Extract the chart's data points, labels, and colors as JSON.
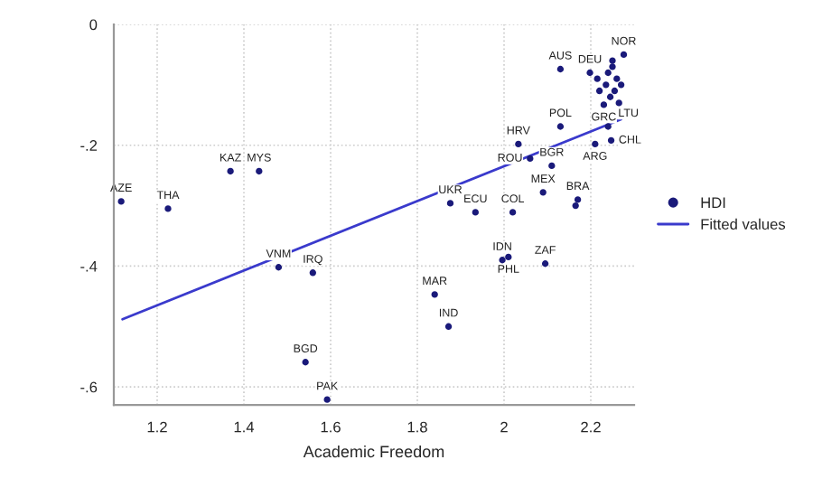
{
  "chart_data": {
    "type": "scatter",
    "xlabel": "Academic Freedom",
    "xlim": [
      1.1,
      2.3
    ],
    "xticks": [
      1.2,
      1.4,
      1.6,
      1.8,
      2,
      2.2
    ],
    "ylim": [
      -0.63,
      0.0
    ],
    "yticks": [
      {
        "value": 0,
        "label": "0"
      },
      {
        "value": -0.2,
        "label": "-.2"
      },
      {
        "value": -0.4,
        "label": "-.4"
      },
      {
        "value": -0.6,
        "label": "-.6"
      }
    ],
    "grid": true,
    "legend": "right",
    "marker": "circle",
    "series": [
      {
        "name": "HDI",
        "color": "#1a1a7a",
        "x": [
          1.117,
          1.225,
          1.369,
          1.435,
          1.48,
          1.559,
          1.542,
          1.592,
          1.876,
          1.934,
          2.02,
          2.09,
          2.17,
          2.165,
          2.033,
          2.06,
          2.11,
          2.13,
          2.13,
          2.198,
          2.276,
          2.23,
          2.24,
          2.21,
          2.247,
          1.996,
          2.01,
          2.095,
          1.84,
          1.872,
          2.24,
          2.25,
          2.26,
          2.27,
          2.255,
          2.235,
          2.215,
          2.245,
          2.265,
          2.22,
          2.25
        ],
        "values": [
          -0.293,
          -0.305,
          -0.243,
          -0.243,
          -0.402,
          -0.411,
          -0.559,
          -0.621,
          -0.296,
          -0.311,
          -0.311,
          -0.278,
          -0.29,
          -0.3,
          -0.198,
          -0.222,
          -0.234,
          -0.169,
          -0.074,
          -0.08,
          -0.05,
          -0.133,
          -0.169,
          -0.198,
          -0.192,
          -0.39,
          -0.385,
          -0.396,
          -0.447,
          -0.5,
          -0.08,
          -0.07,
          -0.09,
          -0.1,
          -0.11,
          -0.1,
          -0.09,
          -0.12,
          -0.13,
          -0.11,
          -0.06
        ],
        "value_labels": [
          "AZE",
          "THA",
          "KAZ",
          "MYS",
          "VNM",
          "IRQ",
          "BGD",
          "PAK",
          "UKR",
          "ECU",
          "COL",
          "MEX",
          "BRA",
          null,
          "HRV",
          "ROU",
          "BGR",
          "POL",
          "AUS",
          "DEU",
          "NOR",
          "GRC",
          "LTU",
          "ARG",
          "CHL",
          "IDN",
          "PHL",
          "ZAF",
          "MAR",
          "IND",
          null,
          null,
          null,
          null,
          null,
          null,
          null,
          null,
          null,
          null,
          null
        ]
      },
      {
        "name": "Fitted values",
        "type": "line",
        "color": "#3a3acc",
        "line_style": "solid",
        "marker": "none",
        "x": [
          1.12,
          2.27
        ],
        "values": [
          -0.488,
          -0.157
        ]
      }
    ]
  }
}
